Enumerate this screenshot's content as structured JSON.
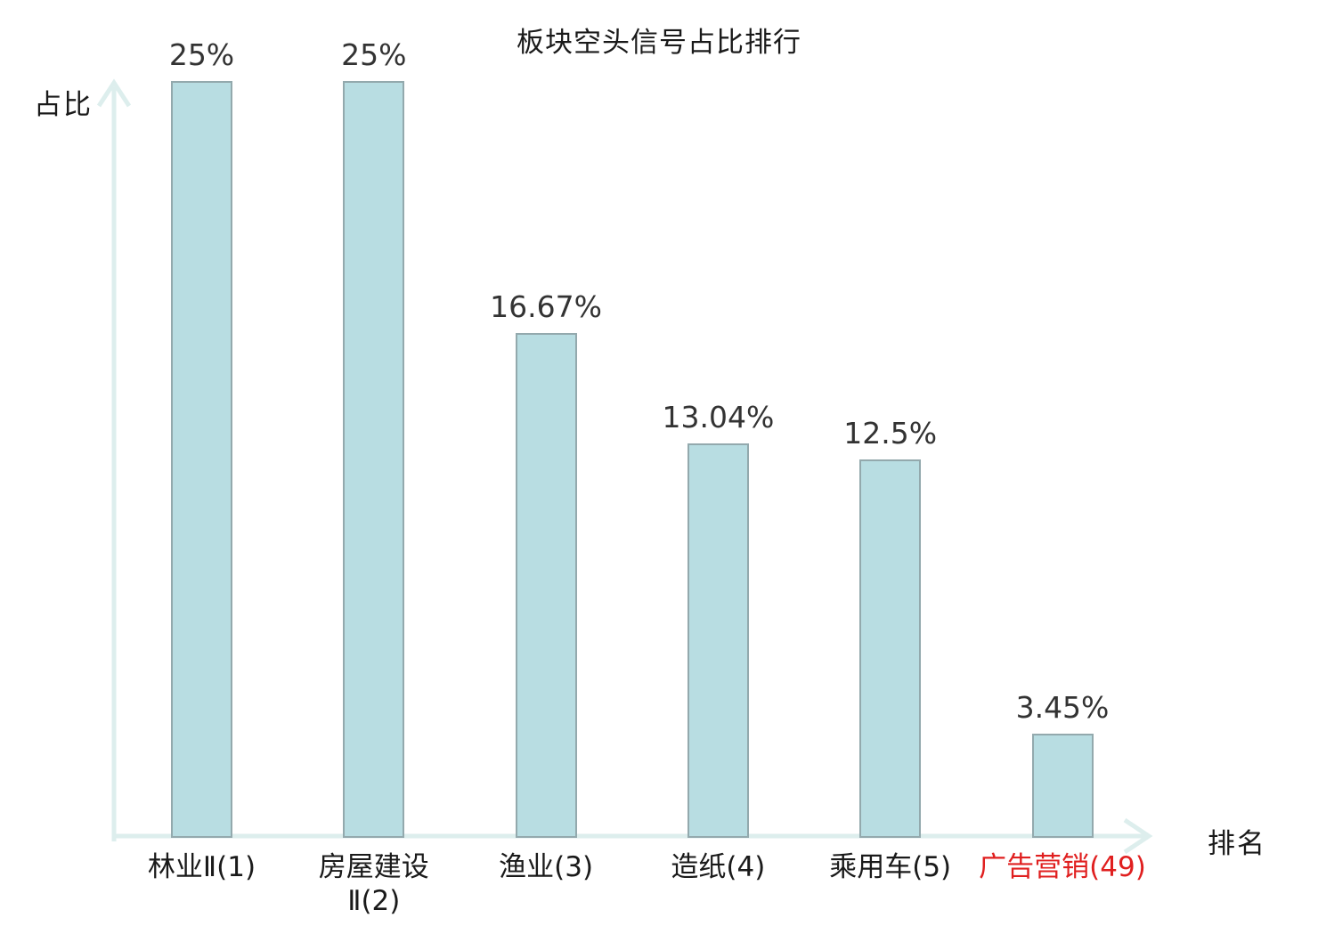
{
  "title": "板块空头信号占比排行",
  "axes": {
    "y_label": "占比",
    "x_label": "排名"
  },
  "colors": {
    "bar_fill": "#b8dde2",
    "bar_border": "#93a9ad",
    "axis": "#ddeeed",
    "value_label": "#333333",
    "category_label": "#1a1a1a",
    "highlight_label": "#e01f1f"
  },
  "chart_data": {
    "type": "bar",
    "title": "板块空头信号占比排行",
    "xlabel": "排名",
    "ylabel": "占比",
    "categories": [
      "林业Ⅱ(1)",
      "房屋建设\nⅡ(2)",
      "渔业(3)",
      "造纸(4)",
      "乘用车(5)",
      "广告营销(49)"
    ],
    "values": [
      25,
      25,
      16.67,
      13.04,
      12.5,
      3.45
    ],
    "value_labels": [
      "25%",
      "25%",
      "16.67%",
      "13.04%",
      "12.5%",
      "3.45%"
    ],
    "highlighted_category_index": 5,
    "ylim": [
      0,
      26
    ],
    "grid": false,
    "legend": false
  }
}
